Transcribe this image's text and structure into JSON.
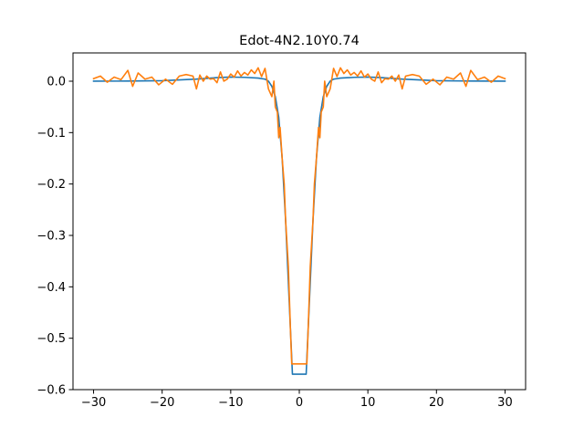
{
  "chart_data": {
    "type": "line",
    "title": "Edot-4N2.10Y0.74",
    "xlabel": "",
    "ylabel": "",
    "xlim": [
      -33,
      33
    ],
    "ylim": [
      -0.6,
      0.055
    ],
    "xticks": [
      -30,
      -20,
      -10,
      0,
      10,
      20,
      30
    ],
    "xtick_labels": [
      "−30",
      "−20",
      "−10",
      "0",
      "10",
      "20",
      "30"
    ],
    "yticks": [
      0.0,
      -0.1,
      -0.2,
      -0.3,
      -0.4,
      -0.5,
      -0.6
    ],
    "ytick_labels": [
      "0.0",
      "−0.1",
      "−0.2",
      "−0.3",
      "−0.4",
      "−0.5",
      "−0.6"
    ],
    "grid": false,
    "series": [
      {
        "color": "#1f77b4",
        "x": [
          -30,
          -25,
          -20,
          -15,
          -12,
          -10,
          -8,
          -6,
          -5,
          -4.5,
          -4,
          -3.5,
          -3,
          -2.5,
          -2,
          -1.5,
          -1,
          1,
          1.5,
          2,
          2.5,
          3,
          3.5,
          4,
          4.5,
          5,
          6,
          8,
          10,
          12,
          15,
          20,
          25,
          30
        ],
        "y": [
          0.0,
          0.0003,
          0.001,
          0.004,
          0.007,
          0.008,
          0.0075,
          0.006,
          0.004,
          0.0,
          -0.01,
          -0.03,
          -0.07,
          -0.15,
          -0.27,
          -0.42,
          -0.57,
          -0.57,
          -0.42,
          -0.27,
          -0.15,
          -0.07,
          -0.03,
          -0.01,
          0.0,
          0.004,
          0.006,
          0.0075,
          0.008,
          0.007,
          0.004,
          0.001,
          0.0003,
          0.0
        ]
      },
      {
        "color": "#ff7f0e",
        "x": [
          -30,
          -29,
          -28,
          -27,
          -26,
          -25,
          -24.3,
          -23.5,
          -22.5,
          -21.5,
          -20.5,
          -19.5,
          -18.5,
          -17.5,
          -16.5,
          -15.5,
          -15,
          -14.5,
          -14,
          -13.5,
          -13,
          -12.5,
          -12,
          -11.5,
          -11,
          -10.5,
          -10,
          -9.5,
          -9,
          -8.5,
          -8,
          -7.5,
          -7,
          -6.5,
          -6,
          -5.5,
          -5,
          -4.5,
          -4,
          -3.7,
          -3.5,
          -3.2,
          -3,
          -2.8,
          -2.5,
          -2.2,
          -2,
          -1.6,
          -1.3,
          -1.1,
          1.1,
          1.3,
          1.6,
          2,
          2.2,
          2.5,
          2.8,
          3,
          3.2,
          3.5,
          3.7,
          4,
          4.5,
          5,
          5.5,
          6,
          6.5,
          7,
          7.5,
          8,
          8.5,
          9,
          9.5,
          10,
          10.5,
          11,
          11.5,
          12,
          12.5,
          13,
          13.5,
          14,
          14.5,
          15,
          15.5,
          16.5,
          17.5,
          18.5,
          19.5,
          20.5,
          21.5,
          22.5,
          23.5,
          24.3,
          25,
          26,
          27,
          28,
          29,
          30
        ],
        "y": [
          0.005,
          0.01,
          -0.002,
          0.008,
          0.003,
          0.021,
          -0.01,
          0.016,
          0.004,
          0.008,
          -0.007,
          0.004,
          -0.006,
          0.01,
          0.013,
          0.01,
          -0.015,
          0.012,
          0.0,
          0.01,
          0.004,
          0.005,
          -0.003,
          0.018,
          0.0,
          0.004,
          0.014,
          0.008,
          0.02,
          0.01,
          0.017,
          0.012,
          0.022,
          0.015,
          0.026,
          0.009,
          0.025,
          -0.015,
          -0.03,
          0.0,
          -0.05,
          -0.06,
          -0.11,
          -0.09,
          -0.15,
          -0.2,
          -0.27,
          -0.36,
          -0.48,
          -0.55,
          -0.55,
          -0.48,
          -0.36,
          -0.27,
          -0.2,
          -0.15,
          -0.09,
          -0.11,
          -0.06,
          -0.05,
          0.0,
          -0.03,
          -0.015,
          0.025,
          0.009,
          0.026,
          0.015,
          0.022,
          0.012,
          0.017,
          0.01,
          0.02,
          0.008,
          0.014,
          0.004,
          0.0,
          0.018,
          -0.003,
          0.005,
          0.004,
          0.01,
          0.0,
          0.012,
          -0.015,
          0.01,
          0.013,
          0.01,
          -0.006,
          0.004,
          -0.007,
          0.008,
          0.004,
          0.016,
          -0.01,
          0.021,
          0.003,
          0.008,
          -0.002,
          0.01,
          0.005
        ]
      }
    ]
  }
}
